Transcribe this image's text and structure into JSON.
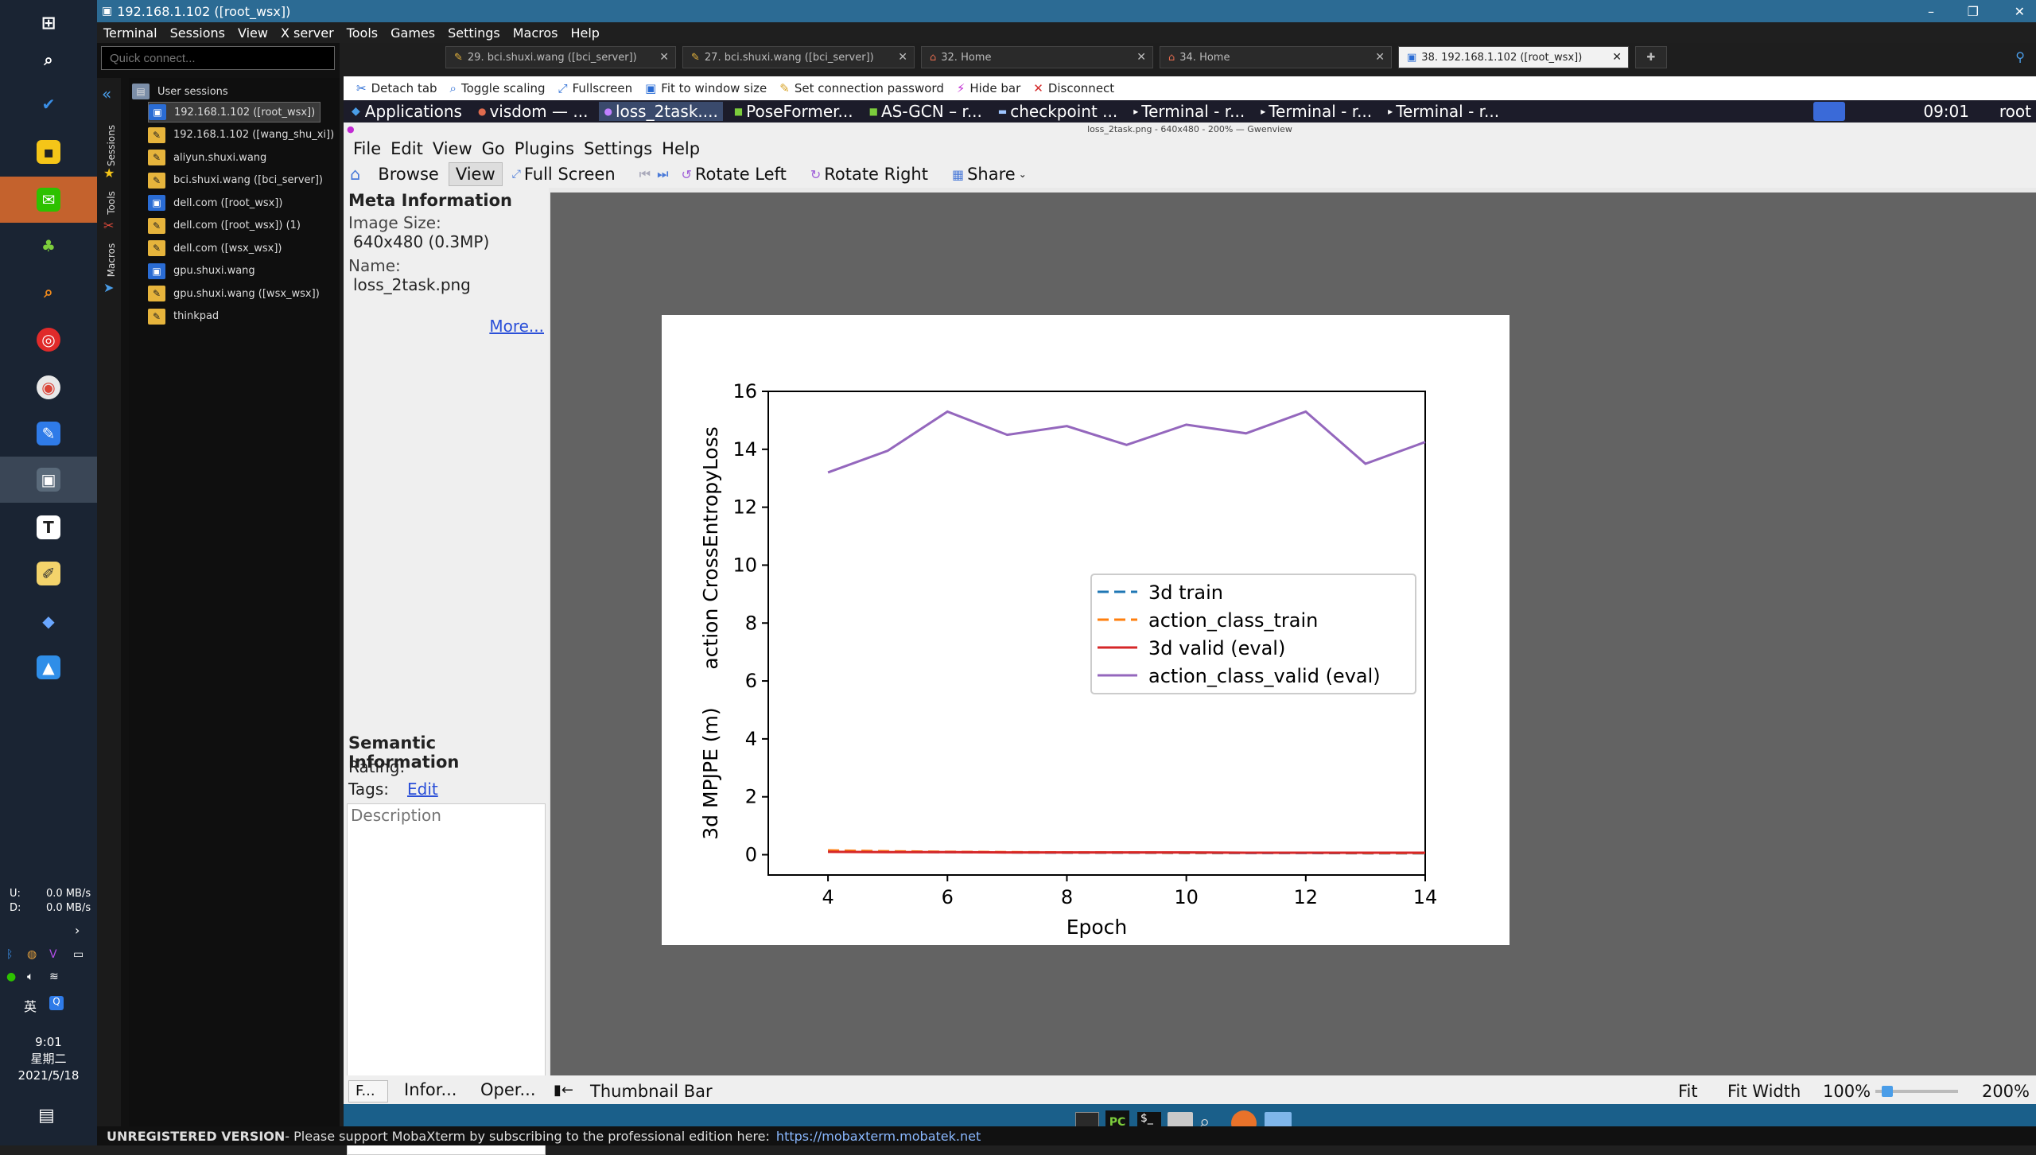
{
  "window": {
    "title": "192.168.1.102 ([root_wsx])"
  },
  "menubar": [
    "Terminal",
    "Sessions",
    "View",
    "X server",
    "Tools",
    "Games",
    "Settings",
    "Macros",
    "Help"
  ],
  "quick_connect": {
    "placeholder": "Quick connect..."
  },
  "side_strip": [
    "Sessions",
    "Tools",
    "Macros"
  ],
  "sessions": {
    "root_label": "User sessions",
    "items": [
      {
        "label": "192.168.1.102 ([root_wsx])",
        "icon": "monitor-icon",
        "selected": true
      },
      {
        "label": "192.168.1.102 ([wang_shu_xi])",
        "icon": "ssh-icon"
      },
      {
        "label": "aliyun.shuxi.wang",
        "icon": "ssh-icon"
      },
      {
        "label": "bci.shuxi.wang ([bci_server])",
        "icon": "ssh-icon"
      },
      {
        "label": "dell.com ([root_wsx])",
        "icon": "monitor-icon"
      },
      {
        "label": "dell.com ([root_wsx]) (1)",
        "icon": "ssh-icon"
      },
      {
        "label": "dell.com ([wsx_wsx])",
        "icon": "ssh-icon"
      },
      {
        "label": "gpu.shuxi.wang",
        "icon": "monitor-icon"
      },
      {
        "label": "gpu.shuxi.wang ([wsx_wsx])",
        "icon": "ssh-icon"
      },
      {
        "label": "thinkpad",
        "icon": "ssh-icon"
      }
    ]
  },
  "tabs": [
    {
      "label": "29. bci.shuxi.wang ([bci_server])"
    },
    {
      "label": "27. bci.shuxi.wang ([bci_server])"
    },
    {
      "label": "32. Home"
    },
    {
      "label": "34. Home"
    },
    {
      "label": "38. 192.168.1.102 ([root_wsx])",
      "active": true
    }
  ],
  "session_toolbar": [
    "Detach tab",
    "Toggle scaling",
    "Fullscreen",
    "Fit to window size",
    "Set connection password",
    "Hide bar",
    "Disconnect"
  ],
  "xfce_panel": {
    "items": [
      "Applications",
      "visdom — ...",
      "loss_2task....",
      "PoseFormer...",
      "AS-GCN – r...",
      "checkpoint ...",
      "Terminal - r...",
      "Terminal - r...",
      "Terminal - r..."
    ],
    "active_index": 2,
    "clock": "09:01",
    "user": "root"
  },
  "gwenview": {
    "title": "loss_2task.png - 640x480 - 200% — Gwenview",
    "menu": [
      "File",
      "Edit",
      "View",
      "Go",
      "Plugins",
      "Settings",
      "Help"
    ],
    "toolbar": [
      "Browse",
      "View",
      "Full Screen",
      "Rotate Left",
      "Rotate Right",
      "Share"
    ],
    "meta": {
      "heading": "Meta Information",
      "size_label": "Image Size:",
      "size_value": "640x480 (0.3MP)",
      "name_label": "Name:",
      "name_value": "loss_2task.png",
      "more": "More..."
    },
    "semantic": {
      "heading": "Semantic Information",
      "rating_label": "Rating:",
      "tags_label": "Tags:",
      "tags_edit": "Edit",
      "description_placeholder": "Description"
    },
    "panel_tabs": [
      "F...",
      "Infor...",
      "Oper..."
    ],
    "status": {
      "thumbnail_bar": "Thumbnail Bar",
      "fit": "Fit",
      "fit_width": "Fit Width",
      "zoom_100": "100%",
      "zoom_value": "200%"
    }
  },
  "taskbar_status": {
    "up_label": "U:",
    "up": "0.0 MB/s",
    "down_label": "D:",
    "down": "0.0 MB/s",
    "ime": "英"
  },
  "clock": {
    "time": "9:01",
    "weekday": "星期二",
    "date": "2021/5/18"
  },
  "footer": {
    "bold": "UNREGISTERED VERSION",
    "text": " -  Please support MobaXterm by subscribing to the professional edition here:",
    "link": "https://mobaxterm.mobatek.net"
  },
  "chart_data": {
    "type": "line",
    "xlabel": "Epoch",
    "ylabel": "3d MPJPE (m)      action CrossEntropyLoss",
    "xlim": [
      3.0,
      14.0
    ],
    "ylim": [
      -0.7,
      16.0
    ],
    "xticks": [
      4,
      6,
      8,
      10,
      12,
      14
    ],
    "yticks": [
      0,
      2,
      4,
      6,
      8,
      10,
      12,
      14,
      16
    ],
    "legend_position": "center-right",
    "x": [
      4,
      5,
      6,
      7,
      8,
      9,
      10,
      11,
      12,
      13,
      14
    ],
    "series": [
      {
        "name": "3d train",
        "color": "#1f77b4",
        "dash": true,
        "values": [
          0.12,
          0.1,
          0.09,
          0.08,
          0.07,
          0.07,
          0.06,
          0.06,
          0.06,
          0.05,
          0.05
        ]
      },
      {
        "name": "action_class_train",
        "color": "#ff7f0e",
        "dash": true,
        "values": [
          0.15,
          0.12,
          0.1,
          0.09,
          0.08,
          0.08,
          0.07,
          0.07,
          0.07,
          0.06,
          0.06
        ]
      },
      {
        "name": "3d valid (eval)",
        "color": "#d62728",
        "dash": false,
        "values": [
          0.1,
          0.09,
          0.09,
          0.08,
          0.08,
          0.08,
          0.08,
          0.07,
          0.07,
          0.07,
          0.07
        ]
      },
      {
        "name": "action_class_valid (eval)",
        "color": "#9467bd",
        "dash": false,
        "values": [
          13.2,
          13.95,
          15.3,
          14.5,
          14.8,
          14.15,
          14.85,
          14.55,
          15.3,
          13.5,
          14.25
        ]
      }
    ]
  }
}
